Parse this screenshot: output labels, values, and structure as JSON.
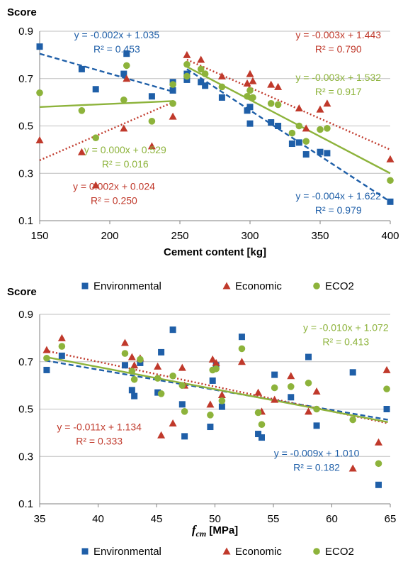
{
  "colors": {
    "environmental": "#1f5fa8",
    "economic": "#c0392b",
    "eco2": "#8db33b",
    "grid": "#bfbfbf",
    "axis": "#808080",
    "text": "#000000"
  },
  "chart_data": [
    {
      "type": "scatter",
      "title": "",
      "ylabel": "Score",
      "xlabel": "Cement content [kg]",
      "xlim": [
        150,
        400
      ],
      "ylim": [
        0.1,
        0.9
      ],
      "xticks": [
        "150",
        "200",
        "250",
        "300",
        "350",
        "400"
      ],
      "yticks": [
        "0.1",
        "0.3",
        "0.5",
        "0.7",
        "0.9"
      ],
      "grid": "horizontal",
      "legend": "bottom",
      "series": [
        {
          "name": "Environmental",
          "key": "environmental",
          "marker": "square",
          "points": [
            [
              150,
              0.835
            ],
            [
              180,
              0.74
            ],
            [
              190,
              0.655
            ],
            [
              210,
              0.72
            ],
            [
              212,
              0.805
            ],
            [
              230,
              0.625
            ],
            [
              245,
              0.685
            ],
            [
              245,
              0.65
            ],
            [
              255,
              0.72
            ],
            [
              255,
              0.695
            ],
            [
              265,
              0.685
            ],
            [
              268,
              0.67
            ],
            [
              280,
              0.62
            ],
            [
              298,
              0.565
            ],
            [
              300,
              0.58
            ],
            [
              300,
              0.51
            ],
            [
              315,
              0.515
            ],
            [
              320,
              0.5
            ],
            [
              330,
              0.425
            ],
            [
              335,
              0.43
            ],
            [
              340,
              0.38
            ],
            [
              350,
              0.39
            ],
            [
              355,
              0.385
            ],
            [
              400,
              0.18
            ]
          ]
        },
        {
          "name": "Economic",
          "key": "economic",
          "marker": "triangle",
          "points": [
            [
              150,
              0.44
            ],
            [
              180,
              0.39
            ],
            [
              190,
              0.25
            ],
            [
              210,
              0.49
            ],
            [
              212,
              0.7
            ],
            [
              230,
              0.415
            ],
            [
              245,
              0.54
            ],
            [
              255,
              0.8
            ],
            [
              265,
              0.78
            ],
            [
              280,
              0.71
            ],
            [
              298,
              0.68
            ],
            [
              300,
              0.72
            ],
            [
              302,
              0.69
            ],
            [
              315,
              0.675
            ],
            [
              320,
              0.665
            ],
            [
              335,
              0.575
            ],
            [
              340,
              0.49
            ],
            [
              350,
              0.57
            ],
            [
              355,
              0.595
            ],
            [
              400,
              0.36
            ]
          ]
        },
        {
          "name": "ECO2",
          "key": "eco2",
          "marker": "circle",
          "points": [
            [
              150,
              0.64
            ],
            [
              180,
              0.565
            ],
            [
              190,
              0.45
            ],
            [
              210,
              0.61
            ],
            [
              212,
              0.755
            ],
            [
              230,
              0.52
            ],
            [
              245,
              0.675
            ],
            [
              245,
              0.595
            ],
            [
              255,
              0.76
            ],
            [
              255,
              0.71
            ],
            [
              265,
              0.74
            ],
            [
              268,
              0.72
            ],
            [
              280,
              0.665
            ],
            [
              298,
              0.625
            ],
            [
              300,
              0.65
            ],
            [
              302,
              0.62
            ],
            [
              315,
              0.595
            ],
            [
              320,
              0.59
            ],
            [
              330,
              0.47
            ],
            [
              335,
              0.5
            ],
            [
              340,
              0.435
            ],
            [
              350,
              0.485
            ],
            [
              355,
              0.49
            ],
            [
              400,
              0.27
            ]
          ]
        }
      ],
      "trendlines": [
        {
          "key": "environmental",
          "style": "dashed",
          "x": [
            150,
            245
          ],
          "y": [
            0.805,
            0.645
          ]
        },
        {
          "key": "environmental",
          "style": "dashed",
          "x": [
            255,
            400
          ],
          "y": [
            0.74,
            0.18
          ]
        },
        {
          "key": "economic",
          "style": "dotted",
          "x": [
            150,
            245
          ],
          "y": [
            0.355,
            0.6
          ]
        },
        {
          "key": "economic",
          "style": "dotted",
          "x": [
            255,
            400
          ],
          "y": [
            0.78,
            0.4
          ]
        },
        {
          "key": "eco2",
          "style": "solid",
          "x": [
            150,
            245
          ],
          "y": [
            0.58,
            0.605
          ]
        },
        {
          "key": "eco2",
          "style": "solid",
          "x": [
            255,
            400
          ],
          "y": [
            0.75,
            0.3
          ]
        }
      ],
      "annotations": [
        {
          "key": "environmental",
          "lines": [
            "y = -0.002x + 1.035",
            "R² = 0.453"
          ],
          "pos": [
            205,
            0.87
          ]
        },
        {
          "key": "economic",
          "lines": [
            "y = -0.003x + 1.443",
            "R² = 0.790"
          ],
          "pos": [
            363,
            0.87
          ]
        },
        {
          "key": "eco2",
          "lines": [
            "y = -0.003x + 1.532",
            "R² = 0.917"
          ],
          "pos": [
            363,
            0.69
          ]
        },
        {
          "key": "eco2",
          "lines": [
            "y = 0.000x + 0.529",
            "R² = 0.016"
          ],
          "pos": [
            211,
            0.385
          ]
        },
        {
          "key": "economic",
          "lines": [
            "y = 0.002x + 0.024",
            "R² = 0.250"
          ],
          "pos": [
            203,
            0.23
          ]
        },
        {
          "key": "environmental",
          "lines": [
            "y = -0.004x + 1.622",
            "R² = 0.979"
          ],
          "pos": [
            363,
            0.19
          ]
        }
      ]
    },
    {
      "type": "scatter",
      "title": "",
      "ylabel": "Score",
      "xlabel_main": "f",
      "xlabel_sub": "cm",
      "xlabel_unit": " [MPa]",
      "xlim": [
        35,
        65
      ],
      "ylim": [
        0.1,
        0.9
      ],
      "xticks": [
        "35",
        "40",
        "45",
        "50",
        "55",
        "60",
        "65"
      ],
      "yticks": [
        "0.1",
        "0.3",
        "0.5",
        "0.7",
        "0.9"
      ],
      "grid": "horizontal",
      "legend": "bottom",
      "series": [
        {
          "name": "Environmental",
          "key": "environmental",
          "marker": "square",
          "points": [
            [
              35.6,
              0.665
            ],
            [
              36.9,
              0.725
            ],
            [
              42.3,
              0.685
            ],
            [
              42.9,
              0.58
            ],
            [
              43.1,
              0.555
            ],
            [
              43.6,
              0.695
            ],
            [
              45.1,
              0.57
            ],
            [
              45.4,
              0.74
            ],
            [
              46.4,
              0.835
            ],
            [
              47.2,
              0.52
            ],
            [
              47.4,
              0.385
            ],
            [
              49.6,
              0.425
            ],
            [
              49.8,
              0.62
            ],
            [
              50.1,
              0.685
            ],
            [
              50.6,
              0.51
            ],
            [
              52.3,
              0.805
            ],
            [
              53.7,
              0.395
            ],
            [
              54.0,
              0.38
            ],
            [
              55.1,
              0.645
            ],
            [
              56.5,
              0.55
            ],
            [
              58.0,
              0.72
            ],
            [
              58.7,
              0.43
            ],
            [
              61.8,
              0.655
            ],
            [
              64.0,
              0.18
            ],
            [
              64.7,
              0.5
            ]
          ]
        },
        {
          "name": "Economic",
          "key": "economic",
          "marker": "triangle",
          "points": [
            [
              35.6,
              0.75
            ],
            [
              36.9,
              0.8
            ],
            [
              42.3,
              0.78
            ],
            [
              42.9,
              0.72
            ],
            [
              43.1,
              0.685
            ],
            [
              43.6,
              0.715
            ],
            [
              45.1,
              0.68
            ],
            [
              45.4,
              0.39
            ],
            [
              46.4,
              0.44
            ],
            [
              47.2,
              0.675
            ],
            [
              47.4,
              0.6
            ],
            [
              49.6,
              0.52
            ],
            [
              49.8,
              0.71
            ],
            [
              50.1,
              0.695
            ],
            [
              50.6,
              0.56
            ],
            [
              52.3,
              0.7
            ],
            [
              53.7,
              0.57
            ],
            [
              54.0,
              0.49
            ],
            [
              55.1,
              0.54
            ],
            [
              56.5,
              0.64
            ],
            [
              58.0,
              0.49
            ],
            [
              58.7,
              0.575
            ],
            [
              61.8,
              0.25
            ],
            [
              64.0,
              0.36
            ],
            [
              64.7,
              0.665
            ]
          ]
        },
        {
          "name": "ECO2",
          "key": "eco2",
          "marker": "circle",
          "points": [
            [
              35.6,
              0.715
            ],
            [
              36.9,
              0.765
            ],
            [
              42.3,
              0.735
            ],
            [
              42.9,
              0.66
            ],
            [
              43.1,
              0.625
            ],
            [
              43.6,
              0.71
            ],
            [
              45.1,
              0.63
            ],
            [
              45.4,
              0.565
            ],
            [
              46.4,
              0.64
            ],
            [
              47.2,
              0.6
            ],
            [
              47.4,
              0.49
            ],
            [
              49.6,
              0.475
            ],
            [
              49.8,
              0.665
            ],
            [
              50.1,
              0.67
            ],
            [
              50.6,
              0.535
            ],
            [
              52.3,
              0.755
            ],
            [
              53.7,
              0.485
            ],
            [
              54.0,
              0.435
            ],
            [
              55.1,
              0.59
            ],
            [
              56.5,
              0.595
            ],
            [
              58.0,
              0.61
            ],
            [
              58.7,
              0.5
            ],
            [
              61.8,
              0.455
            ],
            [
              64.0,
              0.27
            ],
            [
              64.7,
              0.585
            ]
          ]
        }
      ],
      "trendlines": [
        {
          "key": "environmental",
          "style": "dashed",
          "x": [
            35.5,
            64.8
          ],
          "y": [
            0.705,
            0.455
          ]
        },
        {
          "key": "economic",
          "style": "dotted",
          "x": [
            35.5,
            64.8
          ],
          "y": [
            0.747,
            0.44
          ]
        },
        {
          "key": "eco2",
          "style": "solid",
          "x": [
            35.5,
            64.8
          ],
          "y": [
            0.72,
            0.445
          ]
        }
      ],
      "annotations": [
        {
          "key": "eco2",
          "lines": [
            "y = -0.010x + 1.072",
            "R² = 0.413"
          ],
          "pos": [
            61.2,
            0.83
          ]
        },
        {
          "key": "economic",
          "lines": [
            "y = -0.011x + 1.134",
            "R² = 0.333"
          ],
          "pos": [
            40.1,
            0.41
          ]
        },
        {
          "key": "environmental",
          "lines": [
            "y = -0.009x + 1.010",
            "R² = 0.182"
          ],
          "pos": [
            58.7,
            0.3
          ]
        }
      ]
    }
  ]
}
